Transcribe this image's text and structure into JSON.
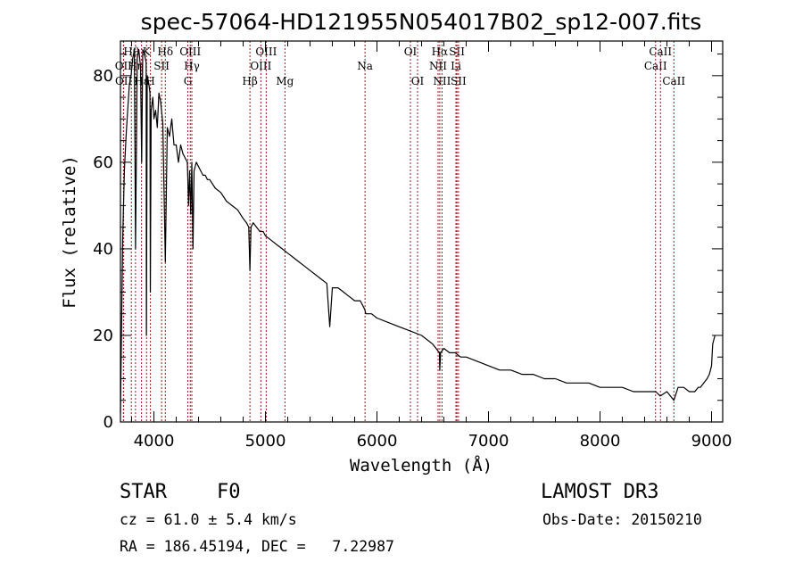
{
  "chart_data": {
    "type": "line",
    "title": "spec-57064-HD121955N054017B02_sp12-007.fits",
    "xlabel": "Wavelength (Å)",
    "ylabel": "Flux (relative)",
    "xlim": [
      3700,
      9100
    ],
    "ylim": [
      0,
      88
    ],
    "xticks": [
      4000,
      5000,
      6000,
      7000,
      8000,
      9000
    ],
    "yticks": [
      0,
      20,
      40,
      60,
      80
    ],
    "grid": false,
    "series": [
      {
        "name": "flux",
        "x": [
          3700,
          3720,
          3735,
          3750,
          3765,
          3780,
          3795,
          3810,
          3825,
          3835,
          3850,
          3865,
          3880,
          3890,
          3900,
          3915,
          3930,
          3933,
          3940,
          3955,
          3965,
          3968,
          3975,
          3990,
          4000,
          4015,
          4030,
          4045,
          4060,
          4080,
          4102,
          4120,
          4140,
          4160,
          4180,
          4200,
          4220,
          4240,
          4260,
          4280,
          4300,
          4310,
          4320,
          4330,
          4340,
          4350,
          4360,
          4380,
          4400,
          4420,
          4440,
          4460,
          4480,
          4500,
          4550,
          4600,
          4650,
          4700,
          4750,
          4800,
          4830,
          4850,
          4861,
          4870,
          4890,
          4920,
          4950,
          4980,
          5000,
          5050,
          5100,
          5150,
          5200,
          5250,
          5300,
          5350,
          5400,
          5450,
          5500,
          5550,
          5577,
          5600,
          5650,
          5700,
          5750,
          5800,
          5850,
          5890,
          5900,
          5950,
          6000,
          6100,
          6200,
          6300,
          6400,
          6500,
          6560,
          6563,
          6570,
          6600,
          6650,
          6700,
          6750,
          6800,
          6900,
          7000,
          7100,
          7200,
          7300,
          7400,
          7500,
          7600,
          7700,
          7800,
          7900,
          8000,
          8100,
          8200,
          8300,
          8400,
          8500,
          8540,
          8600,
          8662,
          8700,
          8750,
          8800,
          8850,
          8880,
          8900,
          8930,
          8960,
          8980,
          8990,
          9000,
          9010,
          9030
        ],
        "y": [
          2,
          42,
          58,
          66,
          72,
          78,
          80,
          84,
          86,
          40,
          84,
          86,
          82,
          60,
          86,
          85,
          83,
          20,
          80,
          78,
          76,
          30,
          72,
          75,
          70,
          72,
          68,
          76,
          74,
          69,
          37,
          68,
          66,
          70,
          64,
          64,
          60,
          64,
          62,
          61,
          60,
          50,
          58,
          48,
          60,
          40,
          58,
          60,
          59,
          58,
          57,
          57,
          56,
          56,
          54,
          53,
          51,
          50,
          49,
          47,
          46,
          45,
          35,
          45,
          46,
          45,
          44,
          44,
          43,
          42,
          41,
          40,
          39,
          38,
          37,
          36,
          35,
          34,
          33,
          32,
          22,
          31,
          31,
          30,
          29,
          28,
          28,
          26,
          25,
          25,
          24,
          23,
          22,
          21,
          20,
          18,
          16,
          12,
          16,
          17,
          16,
          16,
          15,
          15,
          14,
          13,
          12,
          12,
          11,
          11,
          10,
          10,
          9,
          9,
          9,
          8,
          8,
          8,
          7,
          7,
          7,
          6,
          7,
          5,
          8,
          8,
          7,
          7,
          8,
          8,
          9,
          10,
          11,
          12,
          13,
          18,
          20
        ]
      }
    ],
    "lines": [
      {
        "label": "Hθ",
        "wl": 3798,
        "row": 1
      },
      {
        "label": "OII",
        "wl": 3727,
        "row": 2
      },
      {
        "label": "OII",
        "wl": 3729,
        "row": 3
      },
      {
        "label": "Hη",
        "wl": 3835,
        "row": 2
      },
      {
        "label": "Hε",
        "wl": 3889,
        "row": 3
      },
      {
        "label": "K",
        "wl": 3934,
        "row": 1
      },
      {
        "label": "H",
        "wl": 3969,
        "row": 3
      },
      {
        "label": "SII",
        "wl": 4069,
        "row": 2
      },
      {
        "label": "Hδ",
        "wl": 4102,
        "row": 1
      },
      {
        "label": "G",
        "wl": 4304,
        "row": 3
      },
      {
        "label": "OIII",
        "wl": 4326,
        "row": 1
      },
      {
        "label": "Hγ",
        "wl": 4340,
        "row": 2
      },
      {
        "label": "Hβ",
        "wl": 4861,
        "row": 3
      },
      {
        "label": "OIII",
        "wl": 4959,
        "row": 2
      },
      {
        "label": "OIII",
        "wl": 5007,
        "row": 1
      },
      {
        "label": "Mg",
        "wl": 5175,
        "row": 3
      },
      {
        "label": "Na",
        "wl": 5893,
        "row": 2
      },
      {
        "label": "OI",
        "wl": 6300,
        "row": 1
      },
      {
        "label": "OI",
        "wl": 6364,
        "row": 3
      },
      {
        "label": "NII",
        "wl": 6548,
        "row": 2
      },
      {
        "label": "Hα",
        "wl": 6563,
        "row": 1
      },
      {
        "label": "NII",
        "wl": 6583,
        "row": 3
      },
      {
        "label": "Li",
        "wl": 6708,
        "row": 2
      },
      {
        "label": "SII",
        "wl": 6717,
        "row": 1
      },
      {
        "label": "SII",
        "wl": 6731,
        "row": 3
      },
      {
        "label": "CaII",
        "wl": 8498,
        "row": 2
      },
      {
        "label": "CaII",
        "wl": 8542,
        "row": 1
      },
      {
        "label": "CaII",
        "wl": 8662,
        "row": 3
      }
    ],
    "colors": {
      "axis": "#000000",
      "spectrum": "#000000",
      "line_marker": "#a01818"
    }
  },
  "info": {
    "class_label": "STAR",
    "subclass": "F0",
    "survey": "LAMOST DR3",
    "redshift": "cz = 61.0 ± 5.4 km/s",
    "obs_date": "Obs-Date: 20150210",
    "coords": "RA = 186.45194, DEC =   7.22987"
  }
}
